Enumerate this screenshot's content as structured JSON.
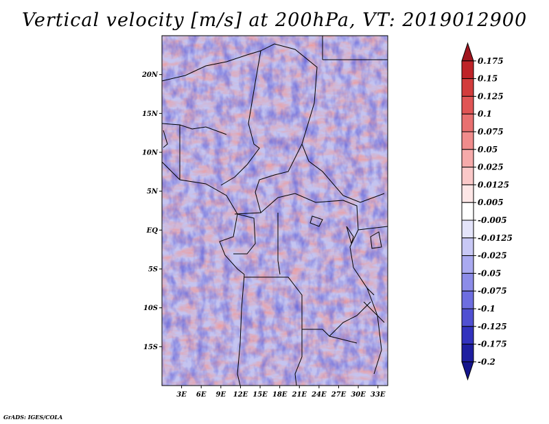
{
  "title": "Vertical velocity [m/s] at 200hPa, VT: 2019012900",
  "credit": "GrADS: IGES/COLA",
  "map": {
    "lat_labels": [
      "20N",
      "15N",
      "10N",
      "5N",
      "EQ",
      "5S",
      "10S",
      "15S"
    ],
    "lon_labels": [
      "3E",
      "6E",
      "9E",
      "12E",
      "15E",
      "18E",
      "21E",
      "24E",
      "27E",
      "30E",
      "33E"
    ],
    "lat_values": [
      20,
      15,
      10,
      5,
      0,
      -5,
      -10,
      -15
    ],
    "lon_values": [
      3,
      6,
      9,
      12,
      15,
      18,
      21,
      24,
      27,
      30,
      33
    ],
    "lon_range": [
      0,
      34.5
    ],
    "lat_range": [
      -20,
      25
    ]
  },
  "colorbar": {
    "labels": [
      "0.175",
      "0.15",
      "0.125",
      "0.1",
      "0.075",
      "0.05",
      "0.025",
      "0.0125",
      "0.005",
      "-0.005",
      "-0.0125",
      "-0.025",
      "-0.05",
      "-0.075",
      "-0.1",
      "-0.125",
      "-0.175",
      "-0.2"
    ],
    "colors": [
      "#a0141e",
      "#be2328",
      "#d23c3c",
      "#e05555",
      "#e87070",
      "#f08c8c",
      "#f5aaaa",
      "#fac8c8",
      "#fde6e6",
      "#ffffff",
      "#e4e4fa",
      "#c8c8f5",
      "#aaaaf0",
      "#8c8ce8",
      "#6e6ee0",
      "#5050d2",
      "#3232be",
      "#1e1ea0",
      "#14148c"
    ]
  }
}
